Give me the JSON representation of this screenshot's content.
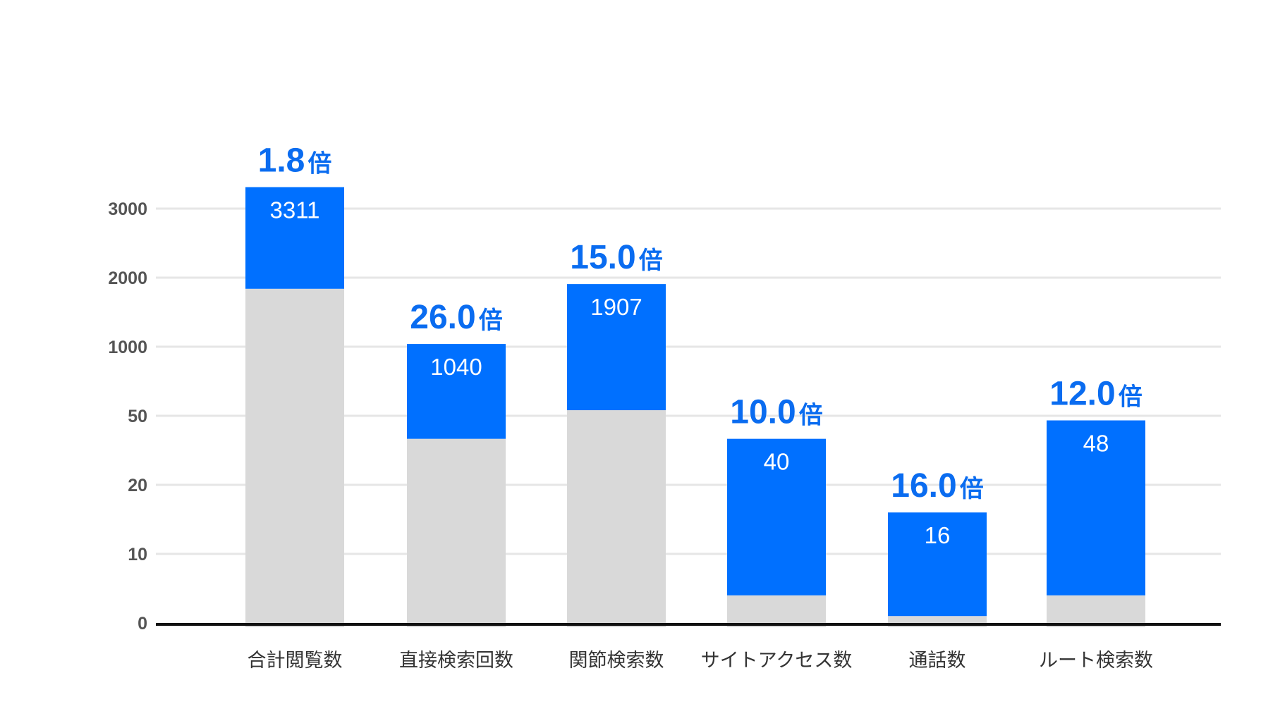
{
  "chart_data": {
    "type": "bar",
    "stacked_overlay": true,
    "categories": [
      "合計閲覧数",
      "直接検索回数",
      "関節検索数",
      "サイトアクセス数",
      "通話数",
      "ルート検索数"
    ],
    "series": [
      {
        "values": [
          1839,
          40,
          127,
          4,
          1,
          4
        ],
        "color": "#d9d9d9"
      },
      {
        "values": [
          3311,
          1040,
          1907,
          40,
          16,
          48
        ],
        "color": "#0070ff"
      }
    ],
    "data_labels": [
      "3311",
      "1040",
      "1907",
      "40",
      "16",
      "48"
    ],
    "multipliers": [
      "1.8",
      "26.0",
      "15.0",
      "10.0",
      "16.0",
      "12.0"
    ],
    "multiplier_unit": "倍",
    "multiplier_color": "#0a6cf0",
    "y_ticks": [
      0,
      10,
      20,
      50,
      1000,
      2000,
      3000
    ],
    "y_tick_labels": [
      "0",
      "10",
      "20",
      "50",
      "1000",
      "2000",
      "3000"
    ],
    "y_scale": "broken",
    "grid": true,
    "title": "",
    "xlabel": "",
    "ylabel": ""
  }
}
